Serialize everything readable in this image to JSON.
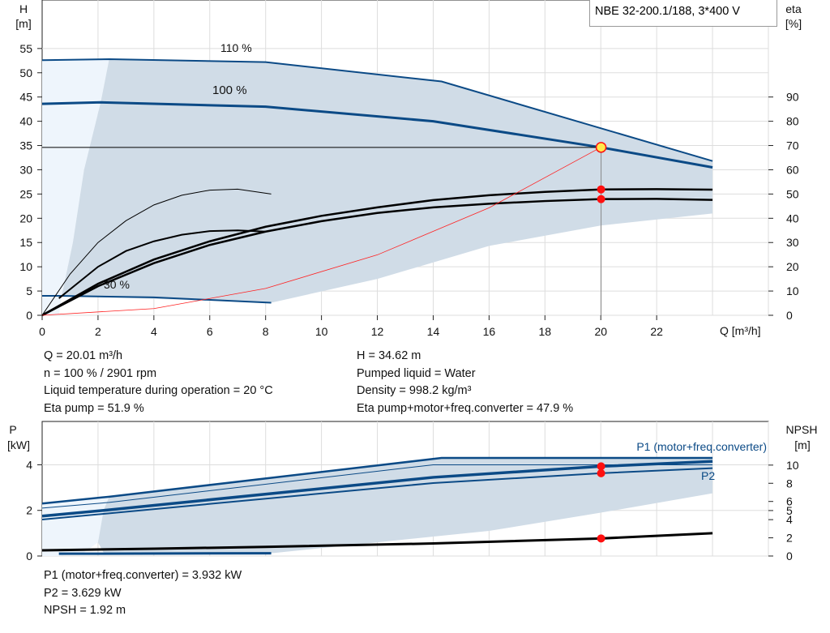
{
  "title": "NBE 32-200.1/188, 3*400 V",
  "colors": {
    "curve": "#0b4a86",
    "shade": "#d0dce7",
    "light": "#eef5fc",
    "system": "#ff2020",
    "point": "#ff1010"
  },
  "chart_data": [
    {
      "type": "line",
      "xlabel": "Q [m³/h]",
      "ylabel": "H\n[m]",
      "ylabel_lines": [
        "H",
        "[m]"
      ],
      "y2label_lines": [
        "eta",
        "[%]"
      ],
      "xlim": [
        0,
        26
      ],
      "ylim": [
        0,
        65
      ],
      "y2lim": [
        0,
        130
      ],
      "xticks": [
        0,
        2,
        4,
        6,
        8,
        10,
        12,
        14,
        16,
        18,
        20,
        22
      ],
      "yticks": [
        0,
        5,
        10,
        15,
        20,
        25,
        30,
        35,
        40,
        45,
        50,
        55
      ],
      "y2ticks": [
        0,
        10,
        20,
        30,
        40,
        50,
        60,
        70,
        80,
        90
      ],
      "grid": true,
      "series": [
        {
          "name": "110 %",
          "axis": "H",
          "points": [
            [
              0,
              52.6
            ],
            [
              2.4,
              52.8
            ],
            [
              8,
              52.2
            ],
            [
              14.3,
              48.2
            ],
            [
              24,
              31.8
            ]
          ]
        },
        {
          "name": "100 %",
          "axis": "H",
          "points": [
            [
              0,
              43.6
            ],
            [
              2.1,
              43.9
            ],
            [
              8,
              43.0
            ],
            [
              14,
              40.0
            ],
            [
              20,
              34.62
            ],
            [
              24,
              30.5
            ]
          ]
        },
        {
          "name": "30 %",
          "axis": "H",
          "points": [
            [
              0,
              4.0
            ],
            [
              0.6,
              4.0
            ],
            [
              4,
              3.7
            ],
            [
              8.2,
              2.6
            ]
          ]
        },
        {
          "axis": "eta",
          "points": [
            [
              0,
              0
            ],
            [
              1,
              17
            ],
            [
              2,
              30
            ],
            [
              3,
              39
            ],
            [
              4,
              45.5
            ],
            [
              5,
              49.5
            ],
            [
              6,
              51.6
            ],
            [
              7,
              52
            ],
            [
              8.2,
              50
            ]
          ]
        },
        {
          "axis": "eta",
          "points": [
            [
              0.6,
              7
            ],
            [
              2,
              20
            ],
            [
              3,
              26.5
            ],
            [
              4,
              30.5
            ],
            [
              5,
              33.2
            ],
            [
              6,
              34.7
            ],
            [
              7,
              35
            ],
            [
              8,
              34.5
            ]
          ]
        },
        {
          "axis": "eta",
          "points": [
            [
              0,
              0
            ],
            [
              2,
              13
            ],
            [
              4,
              23
            ],
            [
              6,
              30.5
            ],
            [
              8,
              36.5
            ],
            [
              10,
              41
            ],
            [
              12,
              44.5
            ],
            [
              14,
              47.5
            ],
            [
              16,
              49.5
            ],
            [
              18,
              50.9
            ],
            [
              20,
              51.9
            ],
            [
              22,
              52
            ],
            [
              24,
              51.8
            ]
          ]
        },
        {
          "axis": "eta",
          "points": [
            [
              0,
              0
            ],
            [
              2,
              12
            ],
            [
              4,
              21.5
            ],
            [
              6,
              29
            ],
            [
              8,
              34.5
            ],
            [
              10,
              38.8
            ],
            [
              12,
              42.2
            ],
            [
              14,
              44.5
            ],
            [
              16,
              46
            ],
            [
              18,
              47.1
            ],
            [
              20,
              47.9
            ],
            [
              22,
              48
            ],
            [
              24,
              47.6
            ]
          ]
        }
      ],
      "system_curve": {
        "points": [
          [
            0,
            0
          ],
          [
            4,
            1.38
          ],
          [
            8,
            5.54
          ],
          [
            12,
            12.46
          ],
          [
            16,
            22.16
          ],
          [
            20,
            34.62
          ]
        ]
      },
      "operating_point": {
        "Q": 20.01,
        "H": 34.62
      },
      "eta_points": [
        51.9,
        47.9
      ],
      "labels": {
        "p110": "110 %",
        "p100": "100 %",
        "p30": "30 %"
      },
      "shade_region": [
        [
          2.4,
          52.8
        ],
        [
          8,
          52.2
        ],
        [
          14.3,
          48.2
        ],
        [
          24,
          31.8
        ],
        [
          24,
          21
        ],
        [
          20,
          18.5
        ],
        [
          16,
          14.3
        ],
        [
          12,
          7.5
        ],
        [
          8.2,
          2.6
        ],
        [
          0.7,
          4
        ],
        [
          1.1,
          15
        ],
        [
          1.5,
          30
        ],
        [
          2.1,
          44
        ]
      ],
      "light_region": [
        [
          0,
          0
        ],
        [
          0,
          52.6
        ],
        [
          2.4,
          52.8
        ],
        [
          2.1,
          44
        ],
        [
          1.5,
          30
        ],
        [
          1.1,
          15
        ],
        [
          0.7,
          4
        ],
        [
          0.6,
          0
        ]
      ]
    },
    {
      "type": "line",
      "ylabel_lines": [
        "P",
        "[kW]"
      ],
      "y2label_lines": [
        "NPSH",
        "[m]"
      ],
      "xlim": [
        0,
        26
      ],
      "ylim": [
        0,
        5.9
      ],
      "y2lim": [
        0,
        14.8
      ],
      "yticks": [
        0,
        2,
        4
      ],
      "y2ticks": [
        0,
        2,
        4,
        5,
        6,
        8,
        10
      ],
      "grid": true,
      "series": [
        {
          "axis": "P",
          "points": [
            [
              0,
              2.3
            ],
            [
              2.4,
              2.6
            ],
            [
              14.3,
              4.3
            ],
            [
              24,
              4.3
            ]
          ]
        },
        {
          "axis": "P",
          "points": [
            [
              0,
              2.1
            ],
            [
              2.4,
              2.35
            ],
            [
              14,
              4.0
            ],
            [
              24,
              4.0
            ]
          ]
        },
        {
          "name": "P1 (motor+freq.converter)",
          "axis": "P",
          "points": [
            [
              0,
              1.75
            ],
            [
              2.2,
              2.0
            ],
            [
              14,
              3.45
            ],
            [
              20,
              3.93
            ],
            [
              24,
              4.15
            ]
          ]
        },
        {
          "name": "P2",
          "axis": "P",
          "points": [
            [
              0,
              1.6
            ],
            [
              2.2,
              1.85
            ],
            [
              14,
              3.2
            ],
            [
              20,
              3.63
            ],
            [
              24,
              3.85
            ]
          ]
        },
        {
          "axis": "P",
          "points": [
            [
              0.6,
              0.1
            ],
            [
              8.2,
              0.12
            ]
          ]
        },
        {
          "axis": "P",
          "points": [
            [
              0,
              0.25
            ],
            [
              4,
              0.32
            ],
            [
              8,
              0.4
            ],
            [
              14,
              0.55
            ],
            [
              20,
              0.77
            ],
            [
              24,
              1.0
            ]
          ]
        }
      ],
      "points": [
        3.932,
        3.629,
        0.77
      ],
      "shade_region": [
        [
          2.4,
          2.6
        ],
        [
          14.3,
          4.3
        ],
        [
          24,
          4.3
        ],
        [
          24,
          2.75
        ],
        [
          20,
          1.9
        ],
        [
          16,
          1.1
        ],
        [
          12,
          0.6
        ],
        [
          8.2,
          0.12
        ],
        [
          2.2,
          0.15
        ],
        [
          2.0,
          0.6
        ],
        [
          2.2,
          2.0
        ]
      ],
      "light_region": [
        [
          0,
          0
        ],
        [
          0,
          2.3
        ],
        [
          2.4,
          2.6
        ],
        [
          2.2,
          2.0
        ],
        [
          2.0,
          0.6
        ],
        [
          1.5,
          0.15
        ],
        [
          0.6,
          0
        ]
      ]
    }
  ],
  "info_top_left": [
    "Q = 20.01 m³/h",
    "n = 100 % / 2901 rpm",
    "Liquid temperature during operation = 20 °C",
    "Eta pump = 51.9 %"
  ],
  "info_top_right": [
    "H = 34.62 m",
    "Pumped liquid = Water",
    "Density = 998.2 kg/m³",
    "Eta pump+motor+freq.converter = 47.9 %"
  ],
  "info_bottom": [
    "P1 (motor+freq.converter) = 3.932 kW",
    "P2 = 3.629 kW",
    "NPSH = 1.92 m"
  ]
}
